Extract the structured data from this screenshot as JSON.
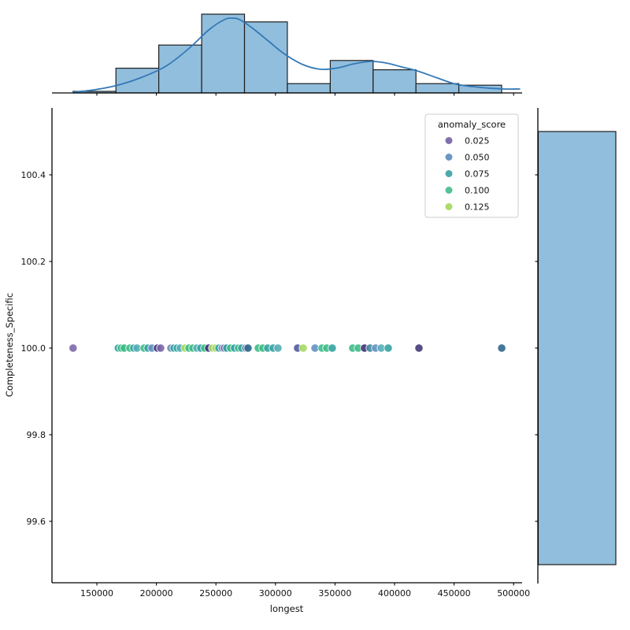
{
  "figure": {
    "background": "#ffffff",
    "text_color": "#111111",
    "spine_color": "#000000"
  },
  "chart_data": {
    "type": "scatter",
    "description": "jointplot: scatter with top and right marginal histograms",
    "xlabel": "longest",
    "ylabel": "Completeness_Specific",
    "xlim": [
      112000,
      507000
    ],
    "ylim": [
      99.46,
      100.55
    ],
    "x_ticks": [
      150000,
      200000,
      250000,
      300000,
      350000,
      400000,
      450000,
      500000
    ],
    "x_tick_labels": [
      "150000",
      "200000",
      "250000",
      "300000",
      "350000",
      "400000",
      "450000",
      "500000"
    ],
    "y_ticks": [
      100.4,
      100.2,
      100.0,
      99.8,
      99.6
    ],
    "y_tick_labels": [
      "100.4",
      "100.2",
      "100.0",
      "99.8",
      "99.6"
    ],
    "grid": false,
    "scatter": {
      "y_constant": 100.0,
      "marker_edge_color": "#ffffff",
      "points": [
        {
          "x": 130000,
          "score": 0.025,
          "color": "#7b68a9"
        },
        {
          "x": 168000,
          "score": 0.075,
          "color": "#35a3a3"
        },
        {
          "x": 170500,
          "score": 0.1,
          "color": "#3cbc87"
        },
        {
          "x": 173000,
          "score": 0.1,
          "color": "#3cbc87"
        },
        {
          "x": 177800,
          "score": 0.1,
          "color": "#3cbc87"
        },
        {
          "x": 181000,
          "score": 0.075,
          "color": "#35a3a3"
        },
        {
          "x": 183700,
          "score": 0.085,
          "color": "#56aeb8"
        },
        {
          "x": 189700,
          "score": 0.1,
          "color": "#3cbc87"
        },
        {
          "x": 193000,
          "score": 0.075,
          "color": "#35a3a3"
        },
        {
          "x": 196300,
          "score": 0.05,
          "color": "#6390c2"
        },
        {
          "x": 200900,
          "score": 0.01,
          "color": "#46307a"
        },
        {
          "x": 203600,
          "score": 0.025,
          "color": "#7b68a9"
        },
        {
          "x": 212200,
          "score": 0.045,
          "color": "#7188ae"
        },
        {
          "x": 214800,
          "score": 0.075,
          "color": "#35a3a3"
        },
        {
          "x": 217500,
          "score": 0.075,
          "color": "#35a3a3"
        },
        {
          "x": 220100,
          "score": 0.085,
          "color": "#56aeb8"
        },
        {
          "x": 224100,
          "score": 0.125,
          "color": "#a5da62"
        },
        {
          "x": 227400,
          "score": 0.1,
          "color": "#3cbc87"
        },
        {
          "x": 230700,
          "score": 0.1,
          "color": "#3cbc87"
        },
        {
          "x": 234000,
          "score": 0.085,
          "color": "#56aeb8"
        },
        {
          "x": 237300,
          "score": 0.075,
          "color": "#35a3a3"
        },
        {
          "x": 240600,
          "score": 0.1,
          "color": "#3cbc87"
        },
        {
          "x": 243900,
          "score": 0.01,
          "color": "#46307a"
        },
        {
          "x": 247200,
          "score": 0.125,
          "color": "#a5da62"
        },
        {
          "x": 249900,
          "score": 0.125,
          "color": "#a5da62"
        },
        {
          "x": 252500,
          "score": 0.075,
          "color": "#35a3a3"
        },
        {
          "x": 255200,
          "score": 0.05,
          "color": "#6390c2"
        },
        {
          "x": 257100,
          "score": 0.025,
          "color": "#7b68a9"
        },
        {
          "x": 259100,
          "score": 0.075,
          "color": "#35a3a3"
        },
        {
          "x": 262400,
          "score": 0.1,
          "color": "#3cbc87"
        },
        {
          "x": 265700,
          "score": 0.075,
          "color": "#35a3a3"
        },
        {
          "x": 269000,
          "score": 0.1,
          "color": "#3cbc87"
        },
        {
          "x": 271700,
          "score": 0.075,
          "color": "#35a3a3"
        },
        {
          "x": 275000,
          "score": 0.045,
          "color": "#7188ae"
        },
        {
          "x": 277000,
          "score": 0.055,
          "color": "#31688e"
        },
        {
          "x": 285600,
          "score": 0.1,
          "color": "#3cbc87"
        },
        {
          "x": 289500,
          "score": 0.1,
          "color": "#3cbc87"
        },
        {
          "x": 293500,
          "score": 0.075,
          "color": "#35a3a3"
        },
        {
          "x": 298100,
          "score": 0.075,
          "color": "#35a3a3"
        },
        {
          "x": 302100,
          "score": 0.085,
          "color": "#56aeb8"
        },
        {
          "x": 318600,
          "score": 0.035,
          "color": "#515b9c"
        },
        {
          "x": 323300,
          "score": 0.125,
          "color": "#a5da62"
        },
        {
          "x": 333200,
          "score": 0.05,
          "color": "#6390c2"
        },
        {
          "x": 339100,
          "score": 0.1,
          "color": "#3cbc87"
        },
        {
          "x": 343100,
          "score": 0.1,
          "color": "#3cbc87"
        },
        {
          "x": 347700,
          "score": 0.075,
          "color": "#35a3a3"
        },
        {
          "x": 364900,
          "score": 0.1,
          "color": "#3cbc87"
        },
        {
          "x": 369500,
          "score": 0.1,
          "color": "#3cbc87"
        },
        {
          "x": 374800,
          "score": 0.01,
          "color": "#46307a"
        },
        {
          "x": 379500,
          "score": 0.065,
          "color": "#3d8a9e"
        },
        {
          "x": 384100,
          "score": 0.05,
          "color": "#6390c2"
        },
        {
          "x": 388800,
          "score": 0.085,
          "color": "#56aeb8"
        },
        {
          "x": 394700,
          "score": 0.075,
          "color": "#35a3a3"
        },
        {
          "x": 420500,
          "score": 0.015,
          "color": "#423a78"
        },
        {
          "x": 490000,
          "score": 0.055,
          "color": "#31688e"
        }
      ]
    },
    "top_histogram": {
      "bin_start": 130000,
      "bin_width": 36000,
      "counts": [
        1,
        16,
        31,
        51,
        46,
        6,
        21,
        15,
        6,
        5
      ],
      "bar_color": "#92bedd",
      "edge_color": "#1f1f1f"
    },
    "kde": {
      "color": "#3279b7",
      "points": [
        [
          130000,
          0.01
        ],
        [
          148000,
          0.04
        ],
        [
          168000,
          0.1
        ],
        [
          188000,
          0.2
        ],
        [
          208000,
          0.34
        ],
        [
          227000,
          0.56
        ],
        [
          244000,
          0.8
        ],
        [
          257000,
          0.93
        ],
        [
          264000,
          0.95
        ],
        [
          270000,
          0.93
        ],
        [
          280000,
          0.83
        ],
        [
          294000,
          0.66
        ],
        [
          307000,
          0.5
        ],
        [
          323000,
          0.36
        ],
        [
          338000,
          0.3
        ],
        [
          353000,
          0.32
        ],
        [
          366000,
          0.37
        ],
        [
          380000,
          0.4
        ],
        [
          393000,
          0.38
        ],
        [
          406000,
          0.33
        ],
        [
          419000,
          0.28
        ],
        [
          436000,
          0.19
        ],
        [
          452000,
          0.11
        ],
        [
          472000,
          0.07
        ],
        [
          492000,
          0.05
        ],
        [
          505000,
          0.05
        ]
      ]
    },
    "right_histogram": {
      "bin_edges": [
        99.5,
        100.5
      ],
      "counts": [
        198
      ],
      "bar_color": "#92bedd",
      "edge_color": "#1f1f1f"
    },
    "legend": {
      "title": "anomaly_score",
      "position": "upper right",
      "items": [
        {
          "label": "0.025",
          "color": "#7b68a9"
        },
        {
          "label": "0.050",
          "color": "#6390c2"
        },
        {
          "label": "0.075",
          "color": "#45a5a5"
        },
        {
          "label": "0.100",
          "color": "#4cc08f"
        },
        {
          "label": "0.125",
          "color": "#a5da62"
        }
      ]
    }
  }
}
